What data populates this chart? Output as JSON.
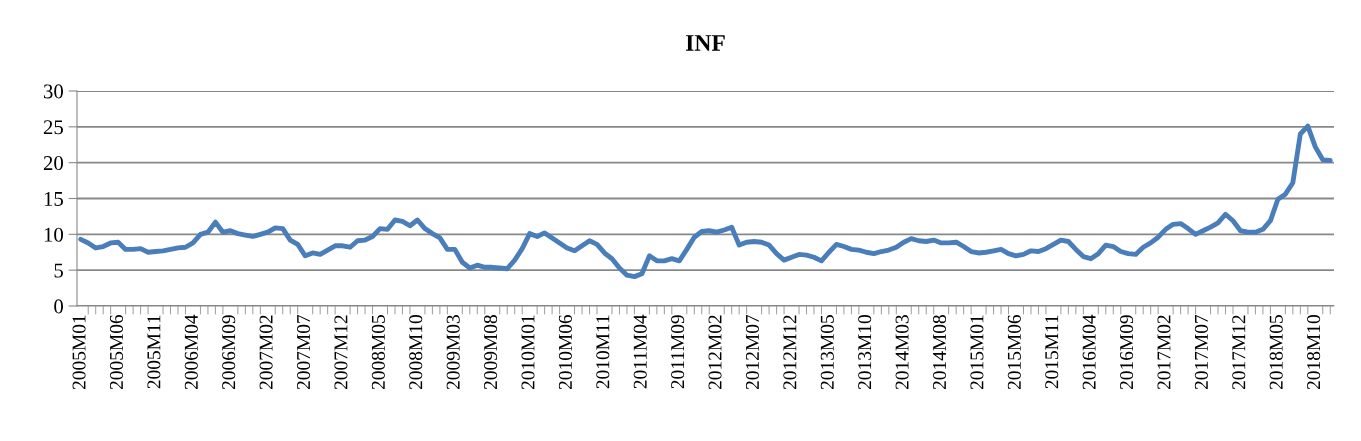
{
  "chart_data": {
    "type": "line",
    "title": "INF",
    "categories": [
      "2005M01",
      null,
      null,
      null,
      null,
      "2005M06",
      null,
      null,
      null,
      null,
      "2005M11",
      null,
      null,
      null,
      null,
      "2006M04",
      null,
      null,
      null,
      null,
      "2006M09",
      null,
      null,
      null,
      null,
      "2007M02",
      null,
      null,
      null,
      null,
      "2007M07",
      null,
      null,
      null,
      null,
      "2007M12",
      null,
      null,
      null,
      null,
      "2008M05",
      null,
      null,
      null,
      null,
      "2008M10",
      null,
      null,
      null,
      null,
      "2009M03",
      null,
      null,
      null,
      null,
      "2009M08",
      null,
      null,
      null,
      null,
      "2010M01",
      null,
      null,
      null,
      null,
      "2010M06",
      null,
      null,
      null,
      null,
      "2010M11",
      null,
      null,
      null,
      null,
      "2011M04",
      null,
      null,
      null,
      null,
      "2011M09",
      null,
      null,
      null,
      null,
      "2012M02",
      null,
      null,
      null,
      null,
      "2012M07",
      null,
      null,
      null,
      null,
      "2012M12",
      null,
      null,
      null,
      null,
      "2013M05",
      null,
      null,
      null,
      null,
      "2013M10",
      null,
      null,
      null,
      null,
      "2014M03",
      null,
      null,
      null,
      null,
      "2014M08",
      null,
      null,
      null,
      null,
      "2015M01",
      null,
      null,
      null,
      null,
      "2015M06",
      null,
      null,
      null,
      null,
      "2015M11",
      null,
      null,
      null,
      null,
      "2016M04",
      null,
      null,
      null,
      null,
      "2016M09",
      null,
      null,
      null,
      null,
      "2017M02",
      null,
      null,
      null,
      null,
      "2017M07",
      null,
      null,
      null,
      null,
      "2017M12",
      null,
      null,
      null,
      null,
      "2018M05",
      null,
      null,
      null,
      null,
      "2018M10",
      null,
      null
    ],
    "series": [
      {
        "color": "#4a7ebb",
        "values": [
          9.3,
          8.8,
          8.1,
          8.3,
          8.8,
          8.9,
          7.9,
          7.9,
          8.0,
          7.5,
          7.6,
          7.7,
          7.9,
          8.1,
          8.2,
          8.8,
          10.0,
          10.3,
          11.7,
          10.3,
          10.5,
          10.1,
          9.9,
          9.7,
          10.0,
          10.3,
          10.9,
          10.8,
          9.2,
          8.6,
          7.0,
          7.4,
          7.2,
          7.8,
          8.4,
          8.4,
          8.2,
          9.1,
          9.2,
          9.7,
          10.8,
          10.7,
          12.0,
          11.8,
          11.2,
          12.0,
          10.8,
          10.1,
          9.5,
          7.9,
          7.9,
          6.1,
          5.3,
          5.7,
          5.4,
          5.4,
          5.3,
          5.2,
          6.4,
          8.0,
          10.1,
          9.7,
          10.2,
          9.5,
          8.8,
          8.1,
          7.7,
          8.4,
          9.1,
          8.6,
          7.4,
          6.6,
          5.3,
          4.3,
          4.1,
          4.5,
          7.0,
          6.3,
          6.3,
          6.6,
          6.3,
          7.9,
          9.6,
          10.4,
          10.5,
          10.3,
          10.6,
          11.0,
          8.5,
          8.9,
          9.0,
          8.9,
          8.5,
          7.3,
          6.4,
          6.8,
          7.2,
          7.1,
          6.8,
          6.3,
          7.5,
          8.6,
          8.3,
          7.9,
          7.8,
          7.5,
          7.3,
          7.6,
          7.8,
          8.2,
          8.9,
          9.4,
          9.1,
          9.0,
          9.2,
          8.8,
          8.8,
          8.9,
          8.3,
          7.6,
          7.4,
          7.5,
          7.7,
          7.9,
          7.3,
          7.0,
          7.2,
          7.7,
          7.6,
          8.0,
          8.6,
          9.2,
          9.0,
          7.9,
          6.9,
          6.6,
          7.3,
          8.5,
          8.3,
          7.6,
          7.3,
          7.2,
          8.2,
          8.8,
          9.6,
          10.7,
          11.4,
          11.5,
          10.8,
          10.0,
          10.5,
          11.0,
          11.6,
          12.8,
          11.9,
          10.5,
          10.3,
          10.3,
          10.7,
          11.9,
          14.9,
          15.6,
          17.2,
          24.0,
          25.1,
          22.2,
          20.4,
          20.3
        ]
      }
    ],
    "ylim": [
      0,
      30
    ],
    "yticks": [
      0,
      5,
      10,
      15,
      20,
      25,
      30
    ],
    "grid": "y",
    "marker": "none",
    "line_style": "solid"
  }
}
